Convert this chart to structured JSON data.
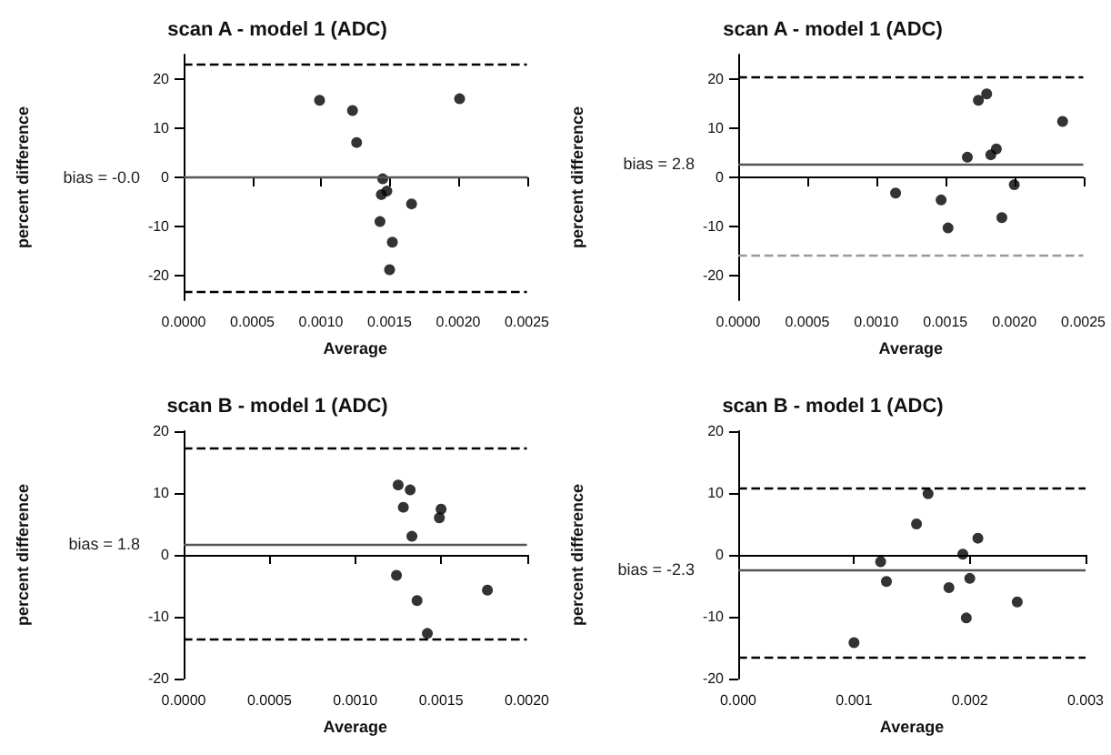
{
  "chart_data": [
    {
      "type": "scatter",
      "title": "scan A - model 1 (ADC)",
      "xlabel": "Average",
      "ylabel": "percent difference",
      "marker": "circle",
      "x": [
        0.00099,
        0.00123,
        0.00126,
        0.00145,
        0.00144,
        0.00148,
        0.00143,
        0.00152,
        0.0015,
        0.00166,
        0.00201
      ],
      "series": [
        {
          "color": "#000000",
          "values": [
            15.7,
            13.6,
            7.1,
            -0.3,
            -3.5,
            -2.8,
            -9.0,
            -13.2,
            -18.8,
            -5.4,
            16.0
          ]
        }
      ],
      "xlim": [
        0,
        0.0025
      ],
      "xticks": [
        {
          "value": 0,
          "label": "0.0000"
        },
        {
          "value": 0.0005,
          "label": "0.0005"
        },
        {
          "value": 0.001,
          "label": "0.0010"
        },
        {
          "value": 0.0015,
          "label": "0.0015"
        },
        {
          "value": 0.002,
          "label": "0.0020"
        },
        {
          "value": 0.0025,
          "label": "0.0025"
        }
      ],
      "ylim": [
        -25,
        25
      ],
      "yticks": [
        -20,
        -10,
        0,
        10,
        20
      ],
      "ref_lines": [
        {
          "axis": "y",
          "value": 0,
          "label": "bias = -0.0",
          "line_style": "solid",
          "color": "#555555"
        },
        {
          "axis": "y",
          "value": 23.2,
          "line_style": "dashed",
          "color": "#000000"
        },
        {
          "axis": "y",
          "value": -23.3,
          "line_style": "dashed",
          "color": "#000000"
        }
      ]
    },
    {
      "type": "scatter",
      "title": "scan A - model 1 (ADC)",
      "xlabel": "Average",
      "ylabel": "percent difference",
      "marker": "circle",
      "x": [
        0.00114,
        0.00147,
        0.00152,
        0.00166,
        0.00174,
        0.0018,
        0.00183,
        0.00187,
        0.00191,
        0.002,
        0.00235
      ],
      "series": [
        {
          "color": "#000000",
          "values": [
            -3.2,
            -4.6,
            -10.3,
            4.1,
            15.7,
            17.0,
            4.6,
            5.8,
            -8.2,
            -1.5,
            11.4
          ]
        }
      ],
      "xlim": [
        0,
        0.0025
      ],
      "xticks": [
        {
          "value": 0,
          "label": "0.0000"
        },
        {
          "value": 0.0005,
          "label": "0.0005"
        },
        {
          "value": 0.001,
          "label": "0.0010"
        },
        {
          "value": 0.0015,
          "label": "0.0015"
        },
        {
          "value": 0.002,
          "label": "0.0020"
        },
        {
          "value": 0.0025,
          "label": "0.0025"
        }
      ],
      "ylim": [
        -25,
        25
      ],
      "yticks": [
        -20,
        -10,
        0,
        10,
        20
      ],
      "ref_lines": [
        {
          "axis": "y",
          "value": 2.8,
          "label": "bias = 2.8",
          "line_style": "solid",
          "color": "#555555"
        },
        {
          "axis": "y",
          "value": 20.6,
          "line_style": "dashed",
          "color": "#000000"
        },
        {
          "axis": "y",
          "value": -15.7,
          "line_style": "dashed",
          "color": "#999999"
        }
      ]
    },
    {
      "type": "scatter",
      "title": "scan B - model 1 (ADC)",
      "xlabel": "Average",
      "ylabel": "percent difference",
      "marker": "circle",
      "x": [
        0.00125,
        0.00132,
        0.00128,
        0.00133,
        0.00124,
        0.00136,
        0.00142,
        0.0015,
        0.00149,
        0.00177
      ],
      "series": [
        {
          "color": "#000000",
          "values": [
            11.3,
            10.5,
            7.7,
            3.0,
            -3.3,
            -7.4,
            -12.7,
            7.4,
            6.0,
            -5.7
          ]
        }
      ],
      "xlim": [
        0,
        0.002
      ],
      "xticks": [
        {
          "value": 0,
          "label": "0.0000"
        },
        {
          "value": 0.0005,
          "label": "0.0005"
        },
        {
          "value": 0.001,
          "label": "0.0010"
        },
        {
          "value": 0.0015,
          "label": "0.0015"
        },
        {
          "value": 0.002,
          "label": "0.0020"
        }
      ],
      "ylim": [
        -20,
        20
      ],
      "yticks": [
        -20,
        -10,
        0,
        10,
        20
      ],
      "ref_lines": [
        {
          "axis": "y",
          "value": 1.8,
          "label": "bias = 1.8",
          "line_style": "solid",
          "color": "#555555"
        },
        {
          "axis": "y",
          "value": 17.3,
          "line_style": "dashed",
          "color": "#000000"
        },
        {
          "axis": "y",
          "value": -13.7,
          "line_style": "dashed",
          "color": "#000000"
        }
      ]
    },
    {
      "type": "scatter",
      "title": "scan B - model 1 (ADC)",
      "xlabel": "Average",
      "ylabel": "percent difference",
      "marker": "circle",
      "x": [
        0.001,
        0.00123,
        0.00128,
        0.00154,
        0.00164,
        0.00182,
        0.00194,
        0.002,
        0.00197,
        0.00207,
        0.00241
      ],
      "series": [
        {
          "color": "#000000",
          "values": [
            -14.2,
            -1.1,
            -4.3,
            5.0,
            9.9,
            -5.3,
            0.1,
            -3.8,
            -10.2,
            2.7,
            -7.6
          ]
        }
      ],
      "xlim": [
        0,
        0.003
      ],
      "xticks": [
        {
          "value": 0,
          "label": "0.000"
        },
        {
          "value": 0.001,
          "label": "0.001"
        },
        {
          "value": 0.002,
          "label": "0.002"
        },
        {
          "value": 0.003,
          "label": "0.003"
        }
      ],
      "ylim": [
        -20,
        20
      ],
      "yticks": [
        -20,
        -10,
        0,
        10,
        20
      ],
      "ref_lines": [
        {
          "axis": "y",
          "value": -2.3,
          "label": "bias = -2.3",
          "line_style": "solid",
          "color": "#555555"
        },
        {
          "axis": "y",
          "value": 10.8,
          "line_style": "dashed",
          "color": "#000000"
        },
        {
          "axis": "y",
          "value": -16.4,
          "line_style": "dashed",
          "color": "#000000"
        }
      ]
    }
  ]
}
